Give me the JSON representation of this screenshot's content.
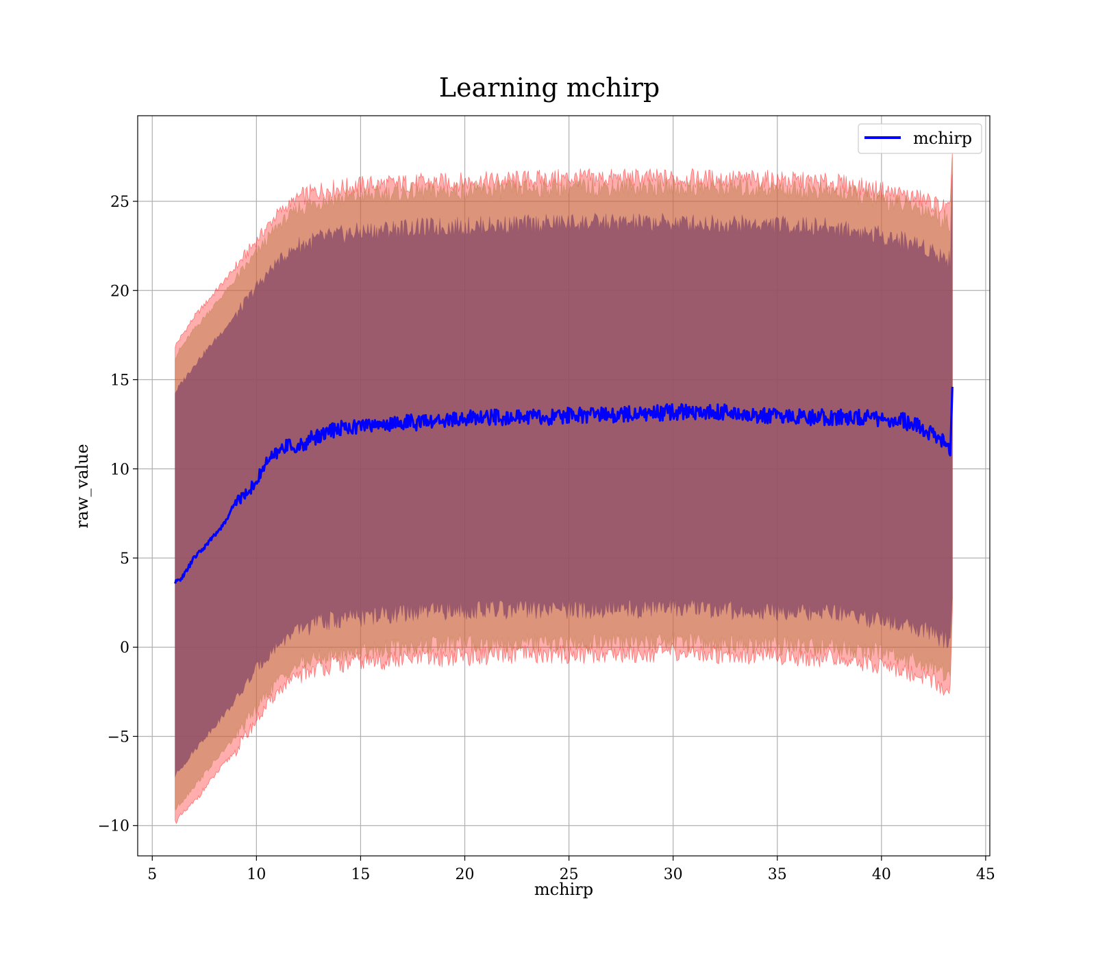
{
  "chart_data": {
    "type": "line",
    "title": "Learning mchirp",
    "xlabel": "mchirp",
    "ylabel": "raw_value",
    "xlim": [
      4.3,
      45.2
    ],
    "ylim": [
      -11.7,
      29.8
    ],
    "x_ticks": [
      5,
      10,
      15,
      20,
      25,
      30,
      35,
      40,
      45
    ],
    "y_ticks": [
      -10,
      -5,
      0,
      5,
      10,
      15,
      20,
      25
    ],
    "x_tick_labels": [
      "5",
      "10",
      "15",
      "20",
      "25",
      "30",
      "35",
      "40",
      "45"
    ],
    "y_tick_labels": [
      "−10",
      "−5",
      "0",
      "5",
      "10",
      "15",
      "20",
      "25"
    ],
    "grid": true,
    "legend_position": "top-right",
    "series": [
      {
        "name": "mchirp",
        "color": "#0000ff",
        "x": [
          6.1,
          6.5,
          7.0,
          7.5,
          8.0,
          8.5,
          9.0,
          9.5,
          10.0,
          10.5,
          11.0,
          11.5,
          12.0,
          12.5,
          13.0,
          14.0,
          15.0,
          16.0,
          17.0,
          18.0,
          19.0,
          20.0,
          21.0,
          22.0,
          23.0,
          24.0,
          25.0,
          26.0,
          27.0,
          28.0,
          29.0,
          30.0,
          31.0,
          32.0,
          33.0,
          34.0,
          35.0,
          36.0,
          37.0,
          38.0,
          39.0,
          40.0,
          41.0,
          42.0,
          42.6,
          43.0,
          43.3,
          43.4
        ],
        "y": [
          3.6,
          4.0,
          5.0,
          5.6,
          6.3,
          7.0,
          8.2,
          8.6,
          9.3,
          10.4,
          10.9,
          11.4,
          11.1,
          11.6,
          11.9,
          12.3,
          12.4,
          12.5,
          12.6,
          12.6,
          12.7,
          12.8,
          12.9,
          12.9,
          12.9,
          12.9,
          13.0,
          13.0,
          13.0,
          13.1,
          13.1,
          13.2,
          13.2,
          13.2,
          13.1,
          13.0,
          13.0,
          12.9,
          12.9,
          12.9,
          12.9,
          12.8,
          12.7,
          12.3,
          11.8,
          11.5,
          11.2,
          14.6
        ]
      }
    ],
    "bands": [
      {
        "color": "#ff0000",
        "opacity": 0.32,
        "x": [
          6.1,
          7.0,
          8.0,
          9.0,
          10.0,
          11.0,
          12.0,
          13.0,
          15.0,
          17.0,
          20.0,
          25.0,
          30.0,
          35.0,
          38.0,
          40.0,
          42.0,
          43.3,
          43.4
        ],
        "lower": [
          -9.8,
          -8.7,
          -7.2,
          -5.8,
          -4.1,
          -2.5,
          -1.6,
          -1.1,
          -0.8,
          -0.7,
          -0.5,
          -0.4,
          -0.3,
          -0.5,
          -0.6,
          -1.0,
          -1.6,
          -2.5,
          2.0
        ],
        "upper": [
          16.9,
          18.5,
          19.9,
          21.3,
          22.8,
          24.3,
          25.2,
          25.6,
          25.9,
          26.0,
          26.1,
          26.3,
          26.3,
          26.2,
          26.0,
          25.6,
          25.1,
          24.5,
          27.8
        ]
      },
      {
        "color": "#c08050",
        "opacity": 0.55,
        "x": [
          6.1,
          7.0,
          8.0,
          9.0,
          10.0,
          11.0,
          12.0,
          13.0,
          15.0,
          17.0,
          20.0,
          25.0,
          30.0,
          35.0,
          38.0,
          40.0,
          42.0,
          43.3,
          43.4
        ],
        "lower": [
          -9.1,
          -7.8,
          -6.4,
          -5.0,
          -3.4,
          -1.9,
          -1.0,
          -0.6,
          -0.2,
          0.0,
          0.2,
          0.2,
          0.3,
          0.1,
          0.0,
          -0.3,
          -0.9,
          -1.6,
          2.5
        ],
        "upper": [
          16.3,
          17.8,
          19.2,
          20.6,
          22.1,
          23.6,
          24.6,
          25.0,
          25.3,
          25.5,
          25.6,
          25.8,
          25.8,
          25.7,
          25.5,
          25.1,
          24.6,
          23.8,
          27.5
        ]
      },
      {
        "color": "#8a4c68",
        "opacity": 0.78,
        "x": [
          6.1,
          7.0,
          8.0,
          9.0,
          10.0,
          11.0,
          12.0,
          13.0,
          15.0,
          17.0,
          20.0,
          25.0,
          30.0,
          35.0,
          38.0,
          40.0,
          42.0,
          43.3,
          43.4
        ],
        "lower": [
          -7.2,
          -5.8,
          -4.4,
          -3.0,
          -1.2,
          0.1,
          1.0,
          1.4,
          1.7,
          1.9,
          2.1,
          2.1,
          2.2,
          2.0,
          1.9,
          1.5,
          1.0,
          0.3,
          2.8
        ],
        "upper": [
          14.3,
          15.8,
          17.2,
          18.6,
          20.2,
          21.6,
          22.5,
          22.9,
          23.3,
          23.5,
          23.6,
          23.8,
          23.8,
          23.7,
          23.5,
          23.1,
          22.5,
          21.7,
          26.5
        ]
      }
    ]
  }
}
